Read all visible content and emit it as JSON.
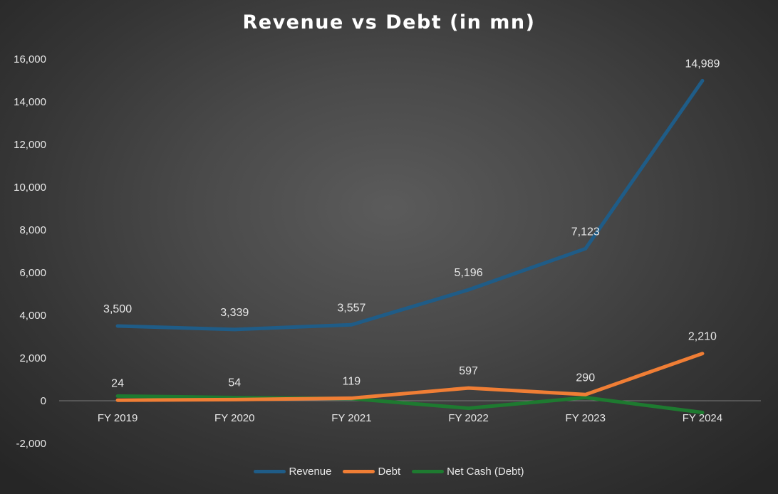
{
  "chart_data": {
    "type": "line",
    "title": "Revenue vs Debt (in mn)",
    "xlabel": "",
    "ylabel": "",
    "categories": [
      "FY 2019",
      "FY 2020",
      "FY 2021",
      "FY 2022",
      "FY 2023",
      "FY 2024"
    ],
    "ylim": [
      -2000,
      16000
    ],
    "yticks": [
      -2000,
      0,
      2000,
      4000,
      6000,
      8000,
      10000,
      12000,
      14000,
      16000
    ],
    "ytick_labels": [
      "-2,000",
      "0",
      "2,000",
      "4,000",
      "6,000",
      "8,000",
      "10,000",
      "12,000",
      "14,000",
      "16,000"
    ],
    "grid": false,
    "legend_position": "bottom",
    "series": [
      {
        "name": "Revenue",
        "color": "#1f5c87",
        "values": [
          3500,
          3339,
          3557,
          5196,
          7123,
          14989
        ],
        "labels": [
          "3,500",
          "3,339",
          "3,557",
          "5,196",
          "7,123",
          "14,989"
        ]
      },
      {
        "name": "Debt",
        "color": "#f07e35",
        "values": [
          24,
          54,
          119,
          597,
          290,
          2210
        ],
        "labels": [
          "24",
          "54",
          "119",
          "597",
          "290",
          "2,210"
        ]
      },
      {
        "name": "Net Cash (Debt)",
        "color": "#1e7a30",
        "values": [
          220,
          150,
          100,
          -350,
          150,
          -550
        ],
        "labels": []
      }
    ]
  }
}
